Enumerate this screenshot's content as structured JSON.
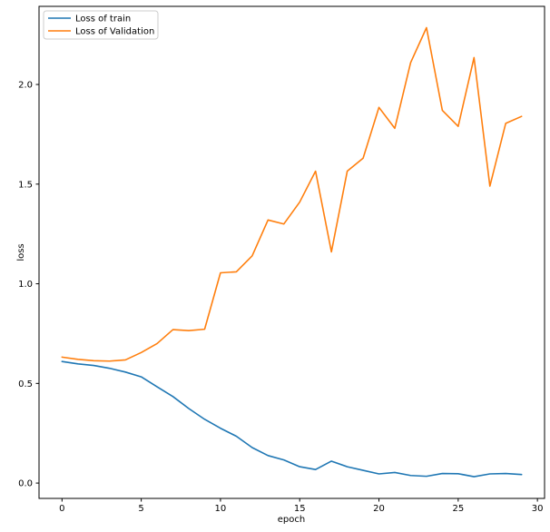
{
  "figure": {
    "background": "#ffffff",
    "spine_color": "#000000",
    "tick_color": "#000000"
  },
  "legend": {
    "border_color": "#cccccc",
    "background": "#ffffff"
  },
  "chart_data": {
    "type": "line",
    "title": "",
    "xlabel": "epoch",
    "ylabel": "loss",
    "xlim": [
      -1.45,
      30.45
    ],
    "ylim": [
      -0.077,
      2.392
    ],
    "xticks": [
      0,
      5,
      10,
      15,
      20,
      25,
      30
    ],
    "xtick_labels": [
      "0",
      "5",
      "10",
      "15",
      "20",
      "25",
      "30"
    ],
    "yticks": [
      0.0,
      0.5,
      1.0,
      1.5,
      2.0
    ],
    "ytick_labels": [
      "0.0",
      "0.5",
      "1.0",
      "1.5",
      "2.0"
    ],
    "grid": false,
    "legend_position": "upper left",
    "x": [
      0,
      1,
      2,
      3,
      4,
      5,
      6,
      7,
      8,
      9,
      10,
      11,
      12,
      13,
      14,
      15,
      16,
      17,
      18,
      19,
      20,
      21,
      22,
      23,
      24,
      25,
      26,
      27,
      28,
      29
    ],
    "series": [
      {
        "name": "Loss of train",
        "color": "#1f77b4",
        "values": [
          0.61,
          0.598,
          0.59,
          0.576,
          0.557,
          0.533,
          0.483,
          0.434,
          0.374,
          0.32,
          0.275,
          0.235,
          0.178,
          0.138,
          0.116,
          0.082,
          0.068,
          0.11,
          0.082,
          0.064,
          0.046,
          0.053,
          0.038,
          0.034,
          0.048,
          0.047,
          0.032,
          0.046,
          0.048,
          0.043
        ]
      },
      {
        "name": "Loss of Validation",
        "color": "#ff7f0e",
        "values": [
          0.632,
          0.621,
          0.614,
          0.612,
          0.618,
          0.655,
          0.7,
          0.77,
          0.765,
          0.772,
          1.055,
          1.06,
          1.14,
          1.32,
          1.3,
          1.41,
          1.565,
          1.16,
          1.565,
          1.63,
          1.885,
          1.78,
          2.11,
          2.285,
          1.87,
          1.79,
          2.135,
          1.49,
          1.805,
          1.84
        ]
      }
    ]
  }
}
